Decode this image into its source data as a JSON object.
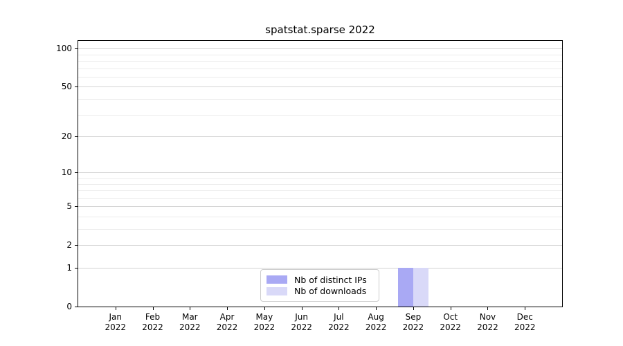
{
  "chart_data": {
    "type": "bar",
    "title": "spatstat.sparse 2022",
    "categories": [
      "Jan",
      "Feb",
      "Mar",
      "Apr",
      "May",
      "Jun",
      "Jul",
      "Aug",
      "Sep",
      "Oct",
      "Nov",
      "Dec"
    ],
    "x_year": "2022",
    "series": [
      {
        "name": "Nb of distinct IPs",
        "color": "#a9a9f4",
        "values": [
          0,
          0,
          0,
          0,
          0,
          0,
          0,
          0,
          1,
          0,
          0,
          0
        ]
      },
      {
        "name": "Nb of downloads",
        "color": "#d9d9f8",
        "values": [
          0,
          0,
          0,
          0,
          0,
          0,
          0,
          0,
          1,
          0,
          0,
          0
        ]
      }
    ],
    "yscale": "log1p",
    "ylim": [
      0,
      115
    ],
    "yticks": [
      0,
      1,
      2,
      5,
      10,
      20,
      50,
      100
    ],
    "yminorticks": [
      3,
      4,
      6,
      7,
      8,
      9,
      30,
      40,
      60,
      70,
      80,
      90
    ],
    "grid": "horizontal-major-and-minor",
    "legend_position": "lower center",
    "colors": {
      "grid_major": "#d2d2d2",
      "grid_minor": "#ececec",
      "spine": "#000000",
      "background": "#ffffff"
    }
  }
}
